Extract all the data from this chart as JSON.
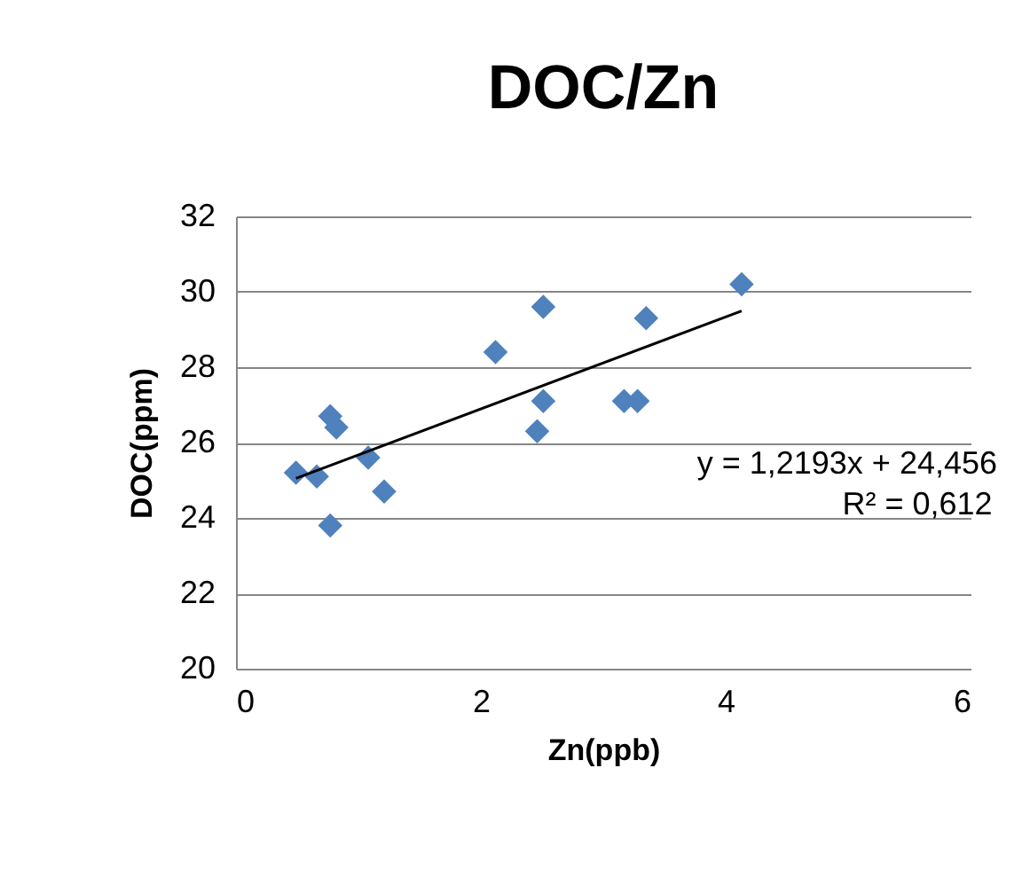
{
  "chart_data": {
    "type": "scatter",
    "title": "DOC/Zn",
    "xlabel": "Zn(ppb)",
    "ylabel": "DOC(ppm)",
    "xlim": [
      0,
      6
    ],
    "xticks": [
      0,
      2,
      4,
      6
    ],
    "ylim": [
      20,
      32
    ],
    "yticks": [
      20,
      22,
      24,
      26,
      28,
      30,
      32
    ],
    "grid": "y",
    "annotations": [
      "y = 1,2193x + 24,456",
      "R² = 0,612"
    ],
    "series": [
      {
        "marker": "diamond",
        "color": "#4f81bd",
        "x": [
          0.49,
          0.66,
          0.77,
          0.82,
          0.77,
          1.08,
          1.21,
          2.12,
          2.51,
          2.51,
          2.46,
          3.17,
          3.28,
          3.35,
          4.13
        ],
        "values": [
          25.2,
          25.1,
          26.7,
          26.4,
          23.8,
          25.6,
          24.7,
          28.4,
          29.6,
          27.1,
          26.3,
          27.1,
          27.1,
          29.3,
          30.2
        ]
      },
      {
        "type": "line",
        "color": "#000000",
        "x": [
          0.49,
          4.13
        ],
        "values": [
          25.05,
          29.49
        ]
      }
    ]
  }
}
